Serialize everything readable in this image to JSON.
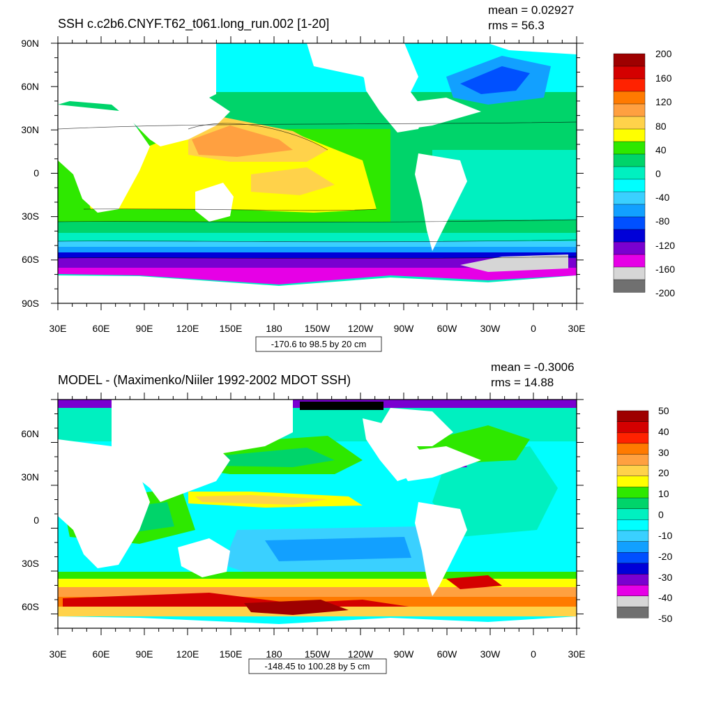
{
  "panels": [
    {
      "title": "SSH c.c2b6.CNYF.T62_t061.long_run.002 [1-20]",
      "mean": "mean = 0.02927",
      "rms": "rms = 56.3",
      "info": "-170.6 to 98.5 by 20 cm",
      "lat_labels": [
        "90N",
        "60N",
        "30N",
        "0",
        "30S",
        "60S",
        "90S"
      ],
      "lon_labels": [
        "30E",
        "60E",
        "90E",
        "120E",
        "150E",
        "180",
        "150W",
        "120W",
        "90W",
        "60W",
        "30W",
        "0",
        "30E"
      ],
      "colorbar": {
        "labels": [
          "200",
          "160",
          "120",
          "80",
          "40",
          "0",
          "-40",
          "-80",
          "-120",
          "-160",
          "-200"
        ],
        "colors": [
          "#9e0000",
          "#d40000",
          "#ff2200",
          "#ff7a00",
          "#ffa040",
          "#ffd24a",
          "#ffff00",
          "#2ee800",
          "#00d46a",
          "#00f0c0",
          "#00ffff",
          "#3ad0ff",
          "#12a0ff",
          "#0050ff",
          "#0000d8",
          "#7a00d0",
          "#e600e6",
          "#d6d6d6",
          "#707070"
        ]
      }
    },
    {
      "title": "MODEL - (Maximenko/Niiler 1992-2002 MDOT SSH)",
      "mean": "mean = -0.3006",
      "rms": "rms = 14.88",
      "info": "-148.45 to 100.28 by 5 cm",
      "lat_labels": [
        "60N",
        "30N",
        "0",
        "30S",
        "60S"
      ],
      "lon_labels": [
        "30E",
        "60E",
        "90E",
        "120E",
        "150E",
        "180",
        "150W",
        "120W",
        "90W",
        "60W",
        "30W",
        "0",
        "30E"
      ],
      "colorbar": {
        "labels": [
          "50",
          "40",
          "30",
          "20",
          "10",
          "0",
          "-10",
          "-20",
          "-30",
          "-40",
          "-50"
        ],
        "colors": [
          "#9e0000",
          "#d40000",
          "#ff2200",
          "#ff7a00",
          "#ffa040",
          "#ffd24a",
          "#ffff00",
          "#2ee800",
          "#00d46a",
          "#00f0c0",
          "#00ffff",
          "#3ad0ff",
          "#12a0ff",
          "#0050ff",
          "#0000d8",
          "#7a00d0",
          "#e600e6",
          "#d6d6d6",
          "#707070"
        ]
      }
    }
  ],
  "colors": {
    "land": "#ffffff",
    "frame": "#000000"
  }
}
